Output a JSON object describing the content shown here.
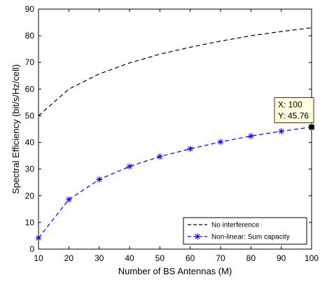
{
  "chart_data": {
    "type": "line",
    "title": "",
    "xlabel": "Number of BS Antennas (M)",
    "ylabel": "Spectral Efficiency (bit/s/Hz/cell)",
    "xlim": [
      10,
      100
    ],
    "ylim": [
      0,
      90
    ],
    "xticks": [
      10,
      20,
      30,
      40,
      50,
      60,
      70,
      80,
      90,
      100
    ],
    "yticks": [
      0,
      10,
      20,
      30,
      40,
      50,
      60,
      70,
      80,
      90
    ],
    "grid": false,
    "legend_position": "bottom-right",
    "series": [
      {
        "name": "No interference",
        "color": "#000000",
        "line_style": "dashed",
        "marker": "none",
        "x": [
          10,
          20,
          30,
          40,
          50,
          60,
          70,
          80,
          90,
          100
        ],
        "y": [
          50,
          60,
          65.7,
          69.8,
          73.1,
          75.7,
          78,
          80,
          81.6,
          83
        ]
      },
      {
        "name": "Non-linear: Sum capacity",
        "color": "#0000ff",
        "line_style": "dashed",
        "marker": "asterisk",
        "x": [
          10,
          20,
          30,
          40,
          50,
          60,
          70,
          80,
          90,
          100
        ],
        "y": [
          4.2,
          18.6,
          26.1,
          31,
          34.7,
          37.6,
          40.2,
          42.4,
          44.2,
          45.76
        ]
      }
    ],
    "datatip": {
      "x_text": "X: 100",
      "y_text": "Y: 45.76"
    }
  }
}
